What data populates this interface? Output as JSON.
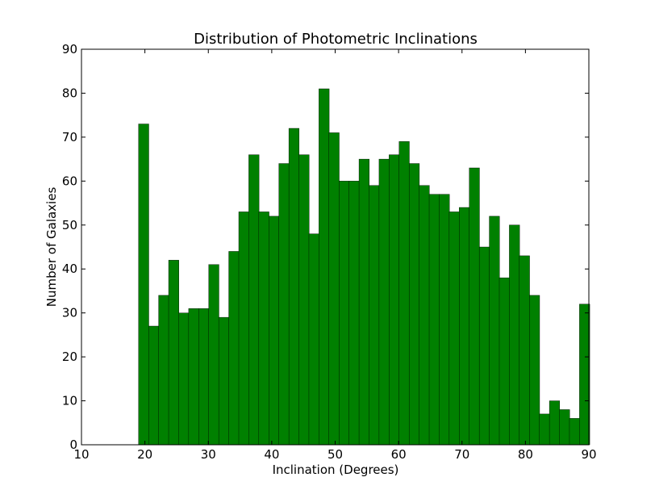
{
  "chart_data": {
    "type": "bar",
    "title": "Distribution of Photometric Inclinations",
    "xlabel": "Inclination (Degrees)",
    "ylabel": "Number of Galaxies",
    "xlim": [
      10,
      90
    ],
    "ylim": [
      0,
      90
    ],
    "xticks": [
      "10",
      "20",
      "30",
      "40",
      "50",
      "60",
      "70",
      "80",
      "90"
    ],
    "yticks": [
      "0",
      "10",
      "20",
      "30",
      "40",
      "50",
      "60",
      "70",
      "80",
      "90"
    ],
    "bar_color": "#008000",
    "grid": false,
    "bin_start": 19,
    "bin_width": 1.58,
    "values": [
      73,
      27,
      34,
      42,
      30,
      31,
      31,
      41,
      29,
      44,
      53,
      66,
      53,
      52,
      64,
      72,
      66,
      48,
      81,
      71,
      60,
      60,
      65,
      59,
      65,
      66,
      69,
      64,
      59,
      57,
      57,
      53,
      54,
      63,
      45,
      52,
      38,
      50,
      43,
      34,
      7,
      10,
      8,
      6,
      32
    ]
  }
}
